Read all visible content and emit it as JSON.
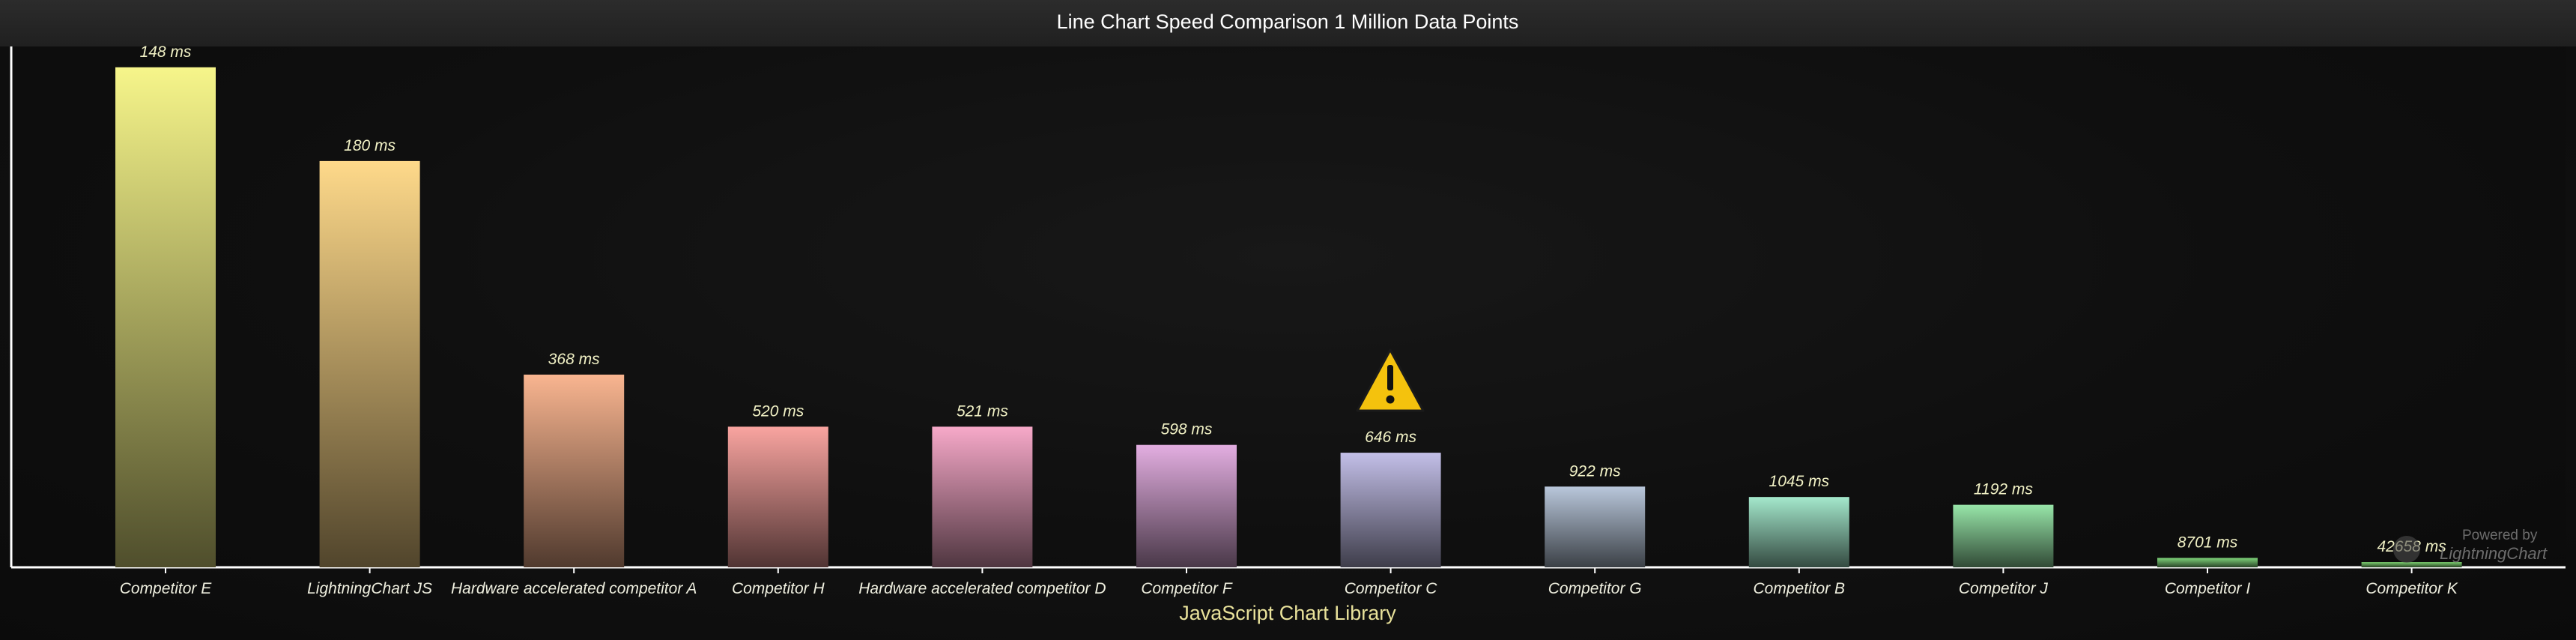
{
  "chart_data": {
    "type": "bar",
    "title": "Line Chart Speed Comparison 1 Million Data Points",
    "xlabel": "JavaScript Chart Library",
    "ylabel": "",
    "categories": [
      "Competitor E",
      "LightningChart JS",
      "Hardware accelerated competitor A",
      "Competitor H",
      "Hardware accelerated competitor D",
      "Competitor F",
      "Competitor C",
      "Competitor G",
      "Competitor B",
      "Competitor J",
      "Competitor I",
      "Competitor K"
    ],
    "value_labels": [
      "148 ms",
      "180 ms",
      "368 ms",
      "520 ms",
      "521 ms",
      "598 ms",
      "646 ms",
      "922 ms",
      "1045 ms",
      "1192 ms",
      "8701 ms",
      "42658 ms"
    ],
    "bar_level": [
      0.96,
      0.78,
      0.37,
      0.27,
      0.27,
      0.235,
      0.22,
      0.155,
      0.135,
      0.12,
      0.018,
      0.01
    ],
    "colors": [
      "#f6f58a",
      "#fed98a",
      "#f9b590",
      "#f9a4a0",
      "#f7a9c9",
      "#e3aee1",
      "#c3bfe8",
      "#b9c7db",
      "#a4e8cc",
      "#98e6a9",
      "#7fd47a",
      "#7ccf6f"
    ],
    "warning_icon_category_index": 6,
    "warning_icon": "warning-icon",
    "grid": false,
    "legend": "none"
  },
  "watermark": {
    "line1": "Powered by",
    "line2": "LightningChart"
  }
}
